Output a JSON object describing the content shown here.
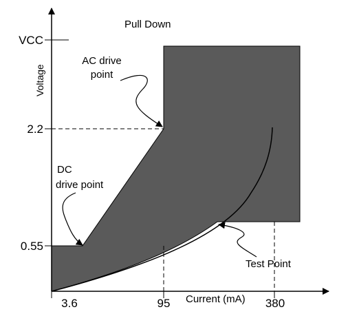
{
  "title": "Pull Down",
  "y_axis": {
    "label": "Voltage",
    "ticks": [
      "VCC",
      "2.2",
      "0.55"
    ]
  },
  "x_axis": {
    "label": "Current (mA)",
    "ticks": [
      "3.6",
      "95",
      "380"
    ]
  },
  "annotations": {
    "ac_drive_point": [
      "AC drive",
      "point"
    ],
    "dc_drive_point": [
      "DC",
      "drive point"
    ],
    "test_point": "Test Point"
  },
  "colors": {
    "region_fill": "#5a5a5a",
    "stroke": "#000000",
    "background": "#ffffff"
  }
}
